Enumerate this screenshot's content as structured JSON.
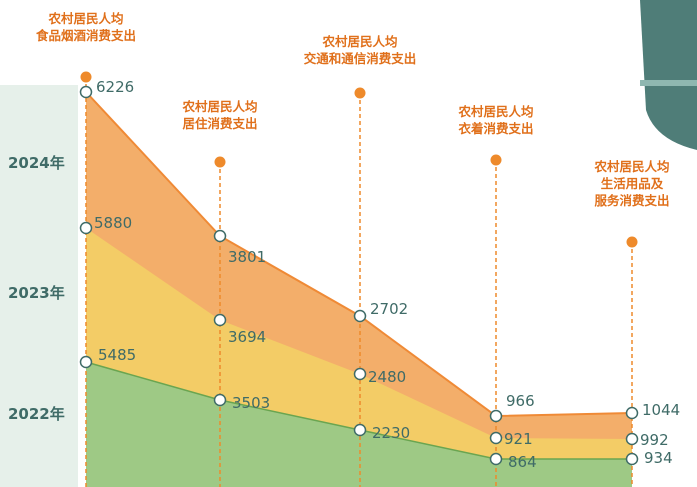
{
  "chart_data": {
    "type": "area",
    "categories": [
      "农村居民人均\n食品烟酒消费支出",
      "农村居民人均\n居住消费支出",
      "农村居民人均\n交通和通信消费支出",
      "农村居民人均\n衣着消费支出",
      "农村居民人均\n生活用品及\n服务消费支出"
    ],
    "series": [
      {
        "name": "2022年",
        "values": [
          5485,
          3503,
          2230,
          864,
          934
        ]
      },
      {
        "name": "2023年",
        "values": [
          5880,
          3694,
          2480,
          921,
          992
        ]
      },
      {
        "name": "2024年",
        "values": [
          6226,
          3801,
          2702,
          966,
          1044
        ]
      }
    ],
    "colors": {
      "2022年": "#9ec985",
      "2023年": "#f3cc66",
      "2024年": "#f3ae6a",
      "top_line": "#ef8a36",
      "marker_dot": "#ee8a2b",
      "teal": "#3f6b67"
    }
  }
}
